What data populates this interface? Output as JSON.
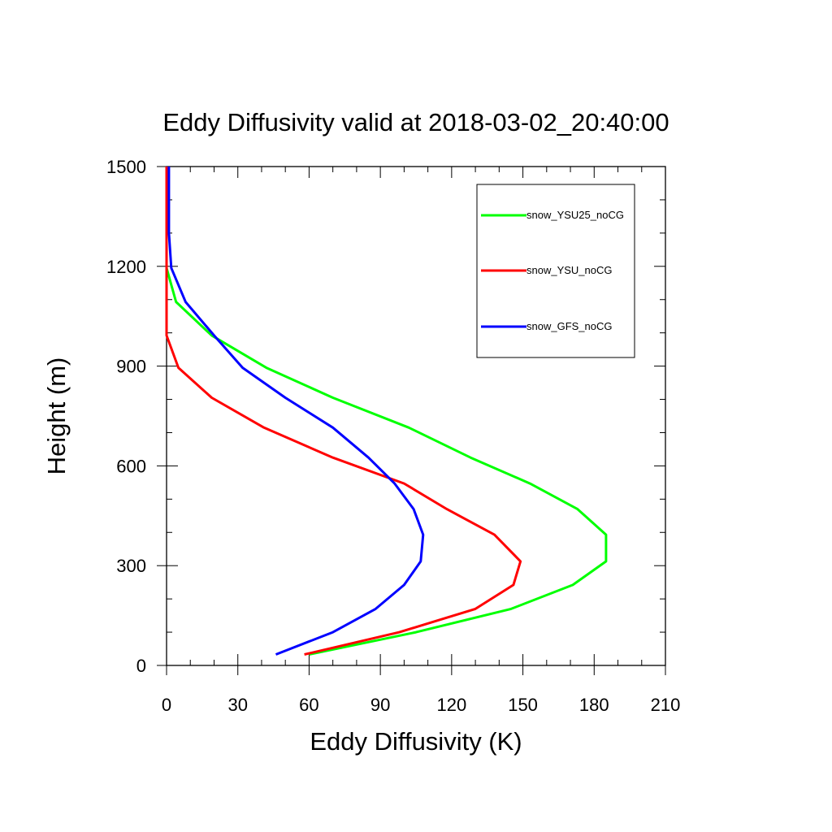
{
  "chart_data": {
    "type": "line",
    "title": "Eddy Diffusivity valid at 2018-03-02_20:40:00",
    "xlabel": "Eddy Diffusivity (K)",
    "ylabel": "Height (m)",
    "xlim": [
      0,
      210
    ],
    "ylim": [
      0,
      1500
    ],
    "xticks": [
      0,
      30,
      60,
      90,
      120,
      150,
      180,
      210
    ],
    "yticks": [
      0,
      300,
      600,
      900,
      1200,
      1500
    ],
    "x_minor_step": 10,
    "y_minor_step": 100,
    "grid": false,
    "legend_position": "top-right",
    "series": [
      {
        "name": "snow_YSU25_noCG",
        "color": "#00ff00",
        "points": [
          [
            60,
            33
          ],
          [
            105,
            100
          ],
          [
            145,
            170
          ],
          [
            171,
            242
          ],
          [
            185,
            313
          ],
          [
            185,
            393
          ],
          [
            173,
            470
          ],
          [
            153,
            547
          ],
          [
            128,
            625
          ],
          [
            102,
            715
          ],
          [
            70,
            805
          ],
          [
            42,
            895
          ],
          [
            19,
            992
          ],
          [
            4,
            1093
          ],
          [
            0,
            1195
          ],
          [
            0,
            1300
          ],
          [
            0,
            1500
          ]
        ]
      },
      {
        "name": "snow_YSU_noCG",
        "color": "#ff0000",
        "points": [
          [
            58,
            33
          ],
          [
            98,
            100
          ],
          [
            130,
            170
          ],
          [
            146,
            242
          ],
          [
            149,
            313
          ],
          [
            138,
            393
          ],
          [
            118,
            470
          ],
          [
            100,
            547
          ],
          [
            70,
            625
          ],
          [
            41,
            715
          ],
          [
            19,
            805
          ],
          [
            5,
            895
          ],
          [
            0,
            992
          ],
          [
            0,
            1093
          ],
          [
            0,
            1200
          ],
          [
            0,
            1500
          ]
        ]
      },
      {
        "name": "snow_GFS_noCG",
        "color": "#0000ff",
        "points": [
          [
            46,
            33
          ],
          [
            70,
            100
          ],
          [
            88,
            170
          ],
          [
            100,
            242
          ],
          [
            107,
            313
          ],
          [
            108,
            393
          ],
          [
            104,
            470
          ],
          [
            96,
            547
          ],
          [
            85,
            625
          ],
          [
            70,
            715
          ],
          [
            50,
            805
          ],
          [
            32,
            895
          ],
          [
            20,
            992
          ],
          [
            8,
            1093
          ],
          [
            2,
            1195
          ],
          [
            1,
            1300
          ],
          [
            1,
            1500
          ]
        ]
      }
    ]
  }
}
